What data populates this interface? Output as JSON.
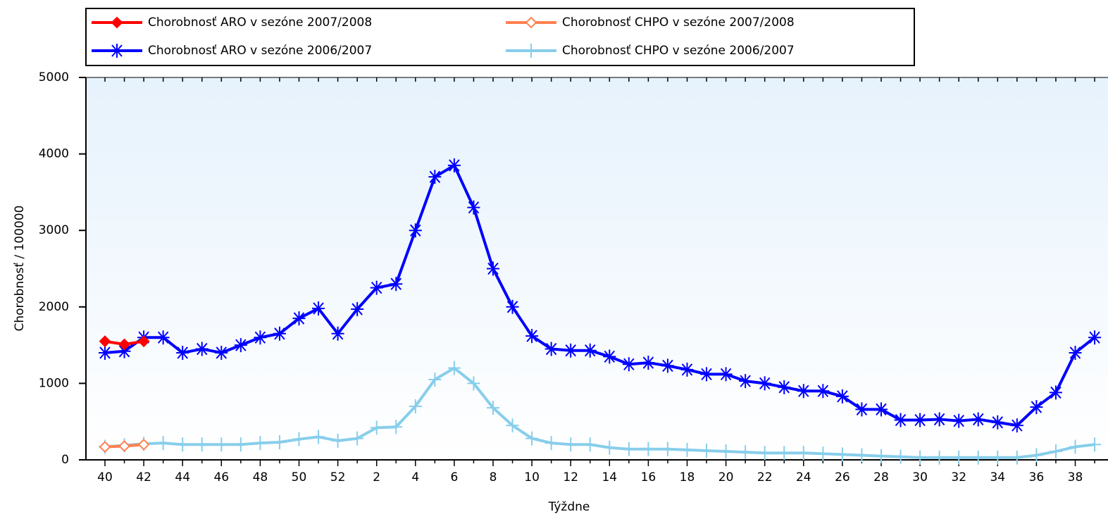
{
  "chart_data": {
    "type": "line",
    "x_label": "Týždne",
    "y_label": "Chorobnosť / 100000",
    "categories": [
      "40",
      null,
      "42",
      null,
      "44",
      null,
      "46",
      null,
      "48",
      null,
      "50",
      null,
      "52",
      null,
      "2",
      null,
      "4",
      null,
      "6",
      null,
      "8",
      null,
      "10",
      null,
      "12",
      null,
      "14",
      null,
      "16",
      null,
      "18",
      null,
      "20",
      null,
      "22",
      null,
      "24",
      null,
      "26",
      null,
      "28",
      null,
      "30",
      null,
      "32",
      null,
      "34",
      null,
      "36",
      null,
      "38",
      null
    ],
    "ylim": [
      0,
      5000
    ],
    "yticks": [
      0,
      1000,
      2000,
      3000,
      4000,
      5000
    ],
    "series": [
      {
        "name": "Chorobnosť ARO v sezóne 2007/2008",
        "color": "#ff0000",
        "marker": "diamond-filled",
        "values": [
          1550,
          1510,
          1550,
          null,
          null,
          null,
          null,
          null,
          null,
          null,
          null,
          null,
          null,
          null,
          null,
          null,
          null,
          null,
          null,
          null,
          null,
          null,
          null,
          null,
          null,
          null,
          null,
          null,
          null,
          null,
          null,
          null,
          null,
          null,
          null,
          null,
          null,
          null,
          null,
          null,
          null,
          null,
          null,
          null,
          null,
          null,
          null,
          null,
          null,
          null,
          null,
          null
        ]
      },
      {
        "name": "Chorobnosť CHPO v sezóne 2007/2008",
        "color": "#ff8050",
        "marker": "diamond-open",
        "values": [
          170,
          180,
          200,
          null,
          null,
          null,
          null,
          null,
          null,
          null,
          null,
          null,
          null,
          null,
          null,
          null,
          null,
          null,
          null,
          null,
          null,
          null,
          null,
          null,
          null,
          null,
          null,
          null,
          null,
          null,
          null,
          null,
          null,
          null,
          null,
          null,
          null,
          null,
          null,
          null,
          null,
          null,
          null,
          null,
          null,
          null,
          null,
          null,
          null,
          null,
          null,
          null
        ]
      },
      {
        "name": "Chorobnosť ARO v sezóne 2006/2007",
        "color": "#0000ff",
        "marker": "asterisk",
        "values": [
          1400,
          1420,
          1600,
          1600,
          1400,
          1450,
          1400,
          1500,
          1600,
          1650,
          1850,
          1980,
          1650,
          1970,
          2250,
          2300,
          3000,
          3700,
          3850,
          3300,
          2500,
          2000,
          1620,
          1450,
          1430,
          1430,
          1350,
          1250,
          1270,
          1230,
          1180,
          1120,
          1120,
          1030,
          1000,
          950,
          900,
          900,
          830,
          660,
          660,
          520,
          520,
          530,
          510,
          530,
          490,
          450,
          690,
          880,
          1400,
          1600
        ]
      },
      {
        "name": "Chorobnosť CHPO v sezóne 2006/2007",
        "color": "#87ceeb",
        "marker": "plus",
        "values": [
          170,
          190,
          210,
          220,
          200,
          200,
          200,
          200,
          220,
          230,
          270,
          300,
          250,
          280,
          420,
          430,
          700,
          1050,
          1200,
          1000,
          680,
          450,
          280,
          220,
          200,
          200,
          160,
          140,
          140,
          140,
          130,
          120,
          110,
          100,
          90,
          90,
          90,
          80,
          70,
          60,
          50,
          40,
          30,
          30,
          30,
          30,
          30,
          30,
          60,
          110,
          170,
          200
        ]
      }
    ]
  }
}
